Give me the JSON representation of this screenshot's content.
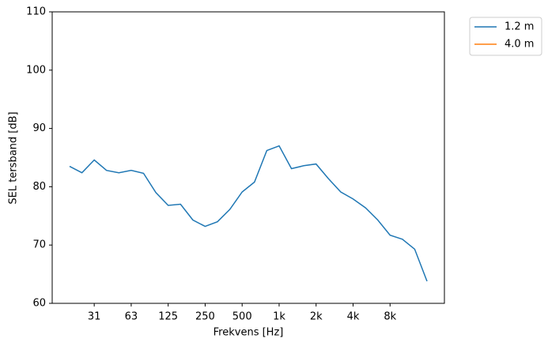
{
  "chart_data": {
    "type": "line",
    "xlabel": "Frekvens [Hz]",
    "ylabel": "SEL tersband [dB]",
    "categories": [
      null,
      null,
      "31",
      null,
      null,
      "63",
      null,
      null,
      "125",
      null,
      null,
      "250",
      null,
      null,
      "500",
      null,
      null,
      "1k",
      null,
      null,
      "2k",
      null,
      null,
      "4k",
      null,
      null,
      "8k",
      null,
      null,
      null
    ],
    "series": [
      {
        "name": "1.2 m",
        "color": "#1f77b4",
        "values": [
          83.5,
          82.4,
          84.6,
          82.8,
          82.4,
          82.8,
          82.3,
          79.0,
          76.8,
          77.0,
          74.3,
          73.2,
          74.0,
          76.1,
          79.1,
          80.8,
          86.2,
          87.0,
          83.1,
          83.6,
          83.9,
          81.4,
          79.1,
          77.9,
          76.4,
          74.3,
          71.7,
          71.0,
          69.3,
          63.8
        ]
      },
      {
        "name": "4.0 m",
        "color": "#ff7f0e",
        "values": [
          null,
          null,
          null,
          null,
          null,
          null,
          null,
          null,
          null,
          null,
          null,
          null,
          null,
          null,
          null,
          null,
          null,
          null,
          null,
          null,
          null,
          null,
          null,
          null,
          null,
          null,
          null,
          null,
          null,
          null
        ]
      }
    ],
    "ylim": [
      60,
      110
    ],
    "yticks": [
      60,
      70,
      80,
      90,
      100,
      110
    ],
    "grid": false,
    "legend": "outside upper right"
  }
}
